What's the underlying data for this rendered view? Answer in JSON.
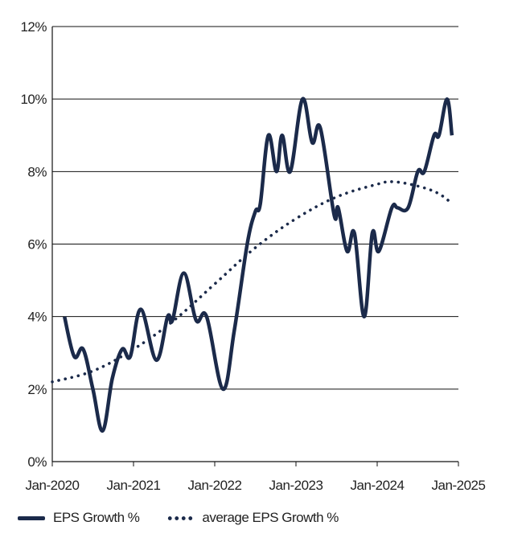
{
  "chart_data": {
    "type": "line",
    "title": "",
    "xlabel": "",
    "ylabel": "",
    "ylim": [
      0,
      12
    ],
    "xlim": [
      2020.0,
      2025.0
    ],
    "y_ticks": [
      0,
      2,
      4,
      6,
      8,
      10,
      12
    ],
    "y_tick_labels": [
      "0%",
      "2%",
      "4%",
      "6%",
      "8%",
      "10%",
      "12%"
    ],
    "x_ticks": [
      2020.0,
      2021.0,
      2022.0,
      2023.0,
      2024.0,
      2025.0
    ],
    "x_tick_labels": [
      "Jan-2020",
      "Jan-2021",
      "Jan-2022",
      "Jan-2023",
      "Jan-2024",
      "Jan-2025"
    ],
    "grid": "horizontal",
    "legend_position": "bottom-left",
    "series": [
      {
        "name": "EPS Growth %",
        "style": "solid",
        "color": "#1b2a4a",
        "points": [
          [
            2020.15,
            4.0
          ],
          [
            2020.27,
            2.9
          ],
          [
            2020.38,
            3.1
          ],
          [
            2020.5,
            2.0
          ],
          [
            2020.62,
            0.85
          ],
          [
            2020.74,
            2.3
          ],
          [
            2020.86,
            3.1
          ],
          [
            2020.96,
            2.9
          ],
          [
            2021.09,
            4.2
          ],
          [
            2021.28,
            2.8
          ],
          [
            2021.42,
            4.0
          ],
          [
            2021.48,
            3.9
          ],
          [
            2021.62,
            5.2
          ],
          [
            2021.77,
            3.9
          ],
          [
            2021.9,
            4.0
          ],
          [
            2022.1,
            2.0
          ],
          [
            2022.24,
            3.6
          ],
          [
            2022.4,
            6.0
          ],
          [
            2022.5,
            6.9
          ],
          [
            2022.56,
            7.1
          ],
          [
            2022.66,
            9.0
          ],
          [
            2022.76,
            8.0
          ],
          [
            2022.83,
            9.0
          ],
          [
            2022.93,
            8.0
          ],
          [
            2023.08,
            10.0
          ],
          [
            2023.2,
            8.8
          ],
          [
            2023.3,
            9.2
          ],
          [
            2023.47,
            6.8
          ],
          [
            2023.52,
            7.0
          ],
          [
            2023.63,
            5.8
          ],
          [
            2023.72,
            6.3
          ],
          [
            2023.84,
            4.0
          ],
          [
            2023.94,
            6.3
          ],
          [
            2024.02,
            5.8
          ],
          [
            2024.18,
            7.0
          ],
          [
            2024.25,
            7.0
          ],
          [
            2024.38,
            7.0
          ],
          [
            2024.5,
            8.0
          ],
          [
            2024.58,
            8.0
          ],
          [
            2024.7,
            9.0
          ],
          [
            2024.76,
            9.0
          ],
          [
            2024.86,
            10.0
          ],
          [
            2024.92,
            9.0
          ]
        ]
      },
      {
        "name": "average EPS Growth %",
        "style": "dotted",
        "color": "#1b2a4a",
        "points": [
          [
            2020.0,
            2.2
          ],
          [
            2020.5,
            2.5
          ],
          [
            2021.0,
            3.1
          ],
          [
            2021.5,
            3.9
          ],
          [
            2022.0,
            4.9
          ],
          [
            2022.5,
            5.9
          ],
          [
            2023.0,
            6.7
          ],
          [
            2023.5,
            7.3
          ],
          [
            2024.0,
            7.65
          ],
          [
            2024.2,
            7.72
          ],
          [
            2024.5,
            7.6
          ],
          [
            2024.75,
            7.4
          ],
          [
            2024.93,
            7.1
          ]
        ]
      }
    ]
  }
}
